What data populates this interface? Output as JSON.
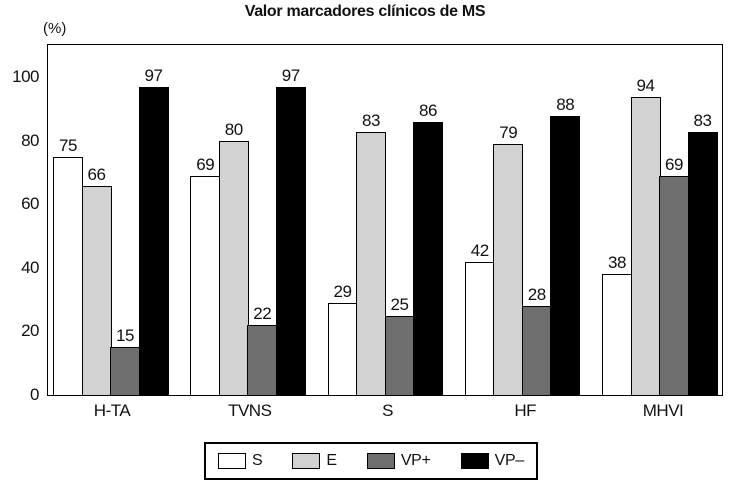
{
  "figure": {
    "title": "Valor marcadores clínicos de MS",
    "y_axis_unit": "(%)"
  },
  "chart_data": {
    "type": "bar",
    "title": "Valor marcadores clínicos de MS",
    "ylabel": "(%)",
    "categories": [
      "H-TA",
      "TVNS",
      "S",
      "HF",
      "MHVI"
    ],
    "series": [
      {
        "name": "S",
        "color": "#ffffff",
        "values": [
          75,
          69,
          29,
          42,
          38
        ]
      },
      {
        "name": "E",
        "color": "#d2d2d2",
        "values": [
          66,
          80,
          83,
          79,
          94
        ]
      },
      {
        "name": "VP+",
        "color": "#6e6e6e",
        "values": [
          15,
          22,
          25,
          28,
          69
        ]
      },
      {
        "name": "VP–",
        "color": "#000000",
        "values": [
          97,
          97,
          86,
          88,
          83
        ]
      }
    ],
    "y_ticks": [
      0,
      20,
      40,
      60,
      80,
      100
    ],
    "ylim": [
      0,
      110
    ],
    "grid": false,
    "legend_position": "bottom",
    "bar_border_color": "#000000",
    "frame": true
  }
}
